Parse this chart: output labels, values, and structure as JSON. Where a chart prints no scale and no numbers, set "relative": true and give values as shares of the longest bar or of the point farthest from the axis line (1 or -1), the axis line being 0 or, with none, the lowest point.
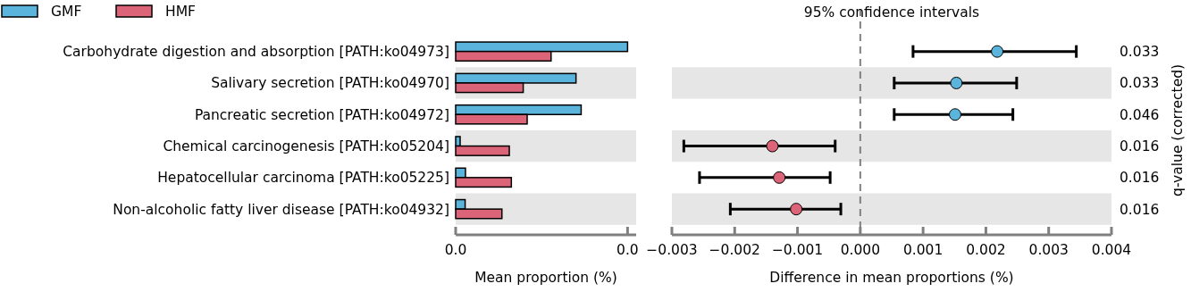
{
  "chart_data": [
    {
      "type": "bar",
      "orientation": "horizontal",
      "relative": true,
      "categories": [
        "Carbohydrate digestion and absorption [PATH:ko04973]",
        "Salivary secretion [PATH:ko04970]",
        "Pancreatic secretion [PATH:ko04972]",
        "Chemical carcinogenesis [PATH:ko05204]",
        "Hepatocellular carcinoma [PATH:ko05225]",
        "Non-alcoholic fatty liver disease [PATH:ko04932]"
      ],
      "series": [
        {
          "name": "GMF",
          "color": "#5ab4dc",
          "values": [
            1,
            0.7,
            0.73,
            0.026,
            0.057,
            0.055
          ]
        },
        {
          "name": "HMF",
          "color": "#dc6478",
          "values": [
            0.555,
            0.393,
            0.416,
            0.312,
            0.324,
            0.269
          ]
        }
      ],
      "annotations": [
        "0.0",
        "0.0"
      ],
      "xlabel": "Mean proportion (%)",
      "legend": "top left"
    },
    {
      "type": "scatter",
      "title": "95% confidence intervals",
      "categories": [
        null,
        null,
        null,
        null,
        null,
        null
      ],
      "values": [
        0.00218,
        0.00153,
        0.00151,
        -0.0014,
        -0.00129,
        -0.00102
      ],
      "errors": [
        [
          0.00084,
          0.00344
        ],
        [
          0.00054,
          0.00249
        ],
        [
          0.00054,
          0.00243
        ],
        [
          -0.00281,
          -0.0004
        ],
        [
          -0.00256,
          -0.00048
        ],
        [
          -0.00207,
          -0.00031
        ]
      ],
      "colors": [
        "#5ab4dc",
        "#5ab4dc",
        "#5ab4dc",
        "#dc6478",
        "#dc6478",
        "#dc6478"
      ],
      "marker": "circle",
      "orientation": "horizontal",
      "xlim": [
        -0.003,
        0.004
      ],
      "xticks": [
        {
          "value": -0.003,
          "label": "−0.003"
        },
        {
          "value": -0.002,
          "label": "−0.002"
        },
        {
          "value": -0.001,
          "label": "−0.001"
        },
        {
          "value": 0,
          "label": "0.000"
        },
        {
          "value": 0.001,
          "label": "0.001"
        },
        {
          "value": 0.002,
          "label": "0.002"
        },
        {
          "value": 0.003,
          "label": "0.003"
        },
        {
          "value": 0.004,
          "label": "0.004"
        }
      ],
      "xlabel": "Difference in mean proportions (%)",
      "y2label": "q-value (corrected)",
      "ref_lines": [
        {
          "axis": "x",
          "value": 0,
          "color": "#808080",
          "line_style": "dashed"
        }
      ],
      "annotations": [
        "0.033",
        "0.033",
        "0.046",
        "0.016",
        "0.016",
        "0.016"
      ]
    }
  ]
}
